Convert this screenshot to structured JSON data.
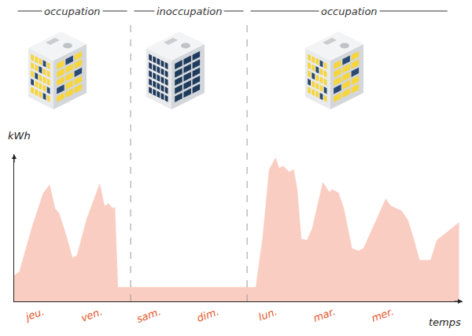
{
  "chart_data": {
    "type": "area",
    "x_label": "temps",
    "y_label": "kWh",
    "color": "#f9cdc2",
    "x": [
      0,
      0.09,
      0.3,
      0.5,
      0.61,
      0.7,
      0.77,
      0.9,
      1.0,
      1.08,
      1.24,
      1.47,
      1.55,
      1.62,
      1.69,
      1.73,
      1.78,
      4.15,
      4.27,
      4.38,
      4.49,
      4.55,
      4.62,
      4.72,
      4.8,
      4.86,
      4.93,
      5.03,
      5.12,
      5.3,
      5.41,
      5.47,
      5.57,
      5.66,
      5.8,
      5.91,
      6.0,
      6.18,
      6.38,
      6.47,
      6.55,
      6.65,
      6.76,
      6.85,
      6.96,
      7.05,
      7.15,
      7.26,
      7.64
    ],
    "values": [
      22,
      25,
      62,
      92,
      99,
      79,
      75,
      55,
      37,
      39,
      69,
      100,
      81,
      83,
      79,
      80,
      12,
      12,
      55,
      112,
      122,
      113,
      115,
      110,
      112,
      95,
      53,
      52,
      62,
      101,
      93,
      95,
      92,
      79,
      45,
      43,
      45,
      65,
      87,
      81,
      79,
      77,
      69,
      55,
      35,
      35,
      35,
      52,
      67
    ],
    "xlim": [
      0,
      7.7
    ],
    "xticks": [
      {
        "value": 0.5,
        "label": "jeu."
      },
      {
        "value": 1.5,
        "label": "ven."
      },
      {
        "value": 2.5,
        "label": "sam."
      },
      {
        "value": 3.5,
        "label": "dim."
      },
      {
        "value": 4.5,
        "label": "lun."
      },
      {
        "value": 5.5,
        "label": "mar."
      },
      {
        "value": 6.5,
        "label": "mer."
      }
    ],
    "ylim": [
      0,
      125
    ],
    "yticks": [],
    "tick_labels": "x",
    "grid": false,
    "periods": [
      {
        "label": "occupation",
        "start": 0,
        "end": 2
      },
      {
        "label": "inoccupation",
        "start": 2,
        "end": 4
      },
      {
        "label": "occupation",
        "start": 4,
        "end": 7.5
      }
    ]
  }
}
